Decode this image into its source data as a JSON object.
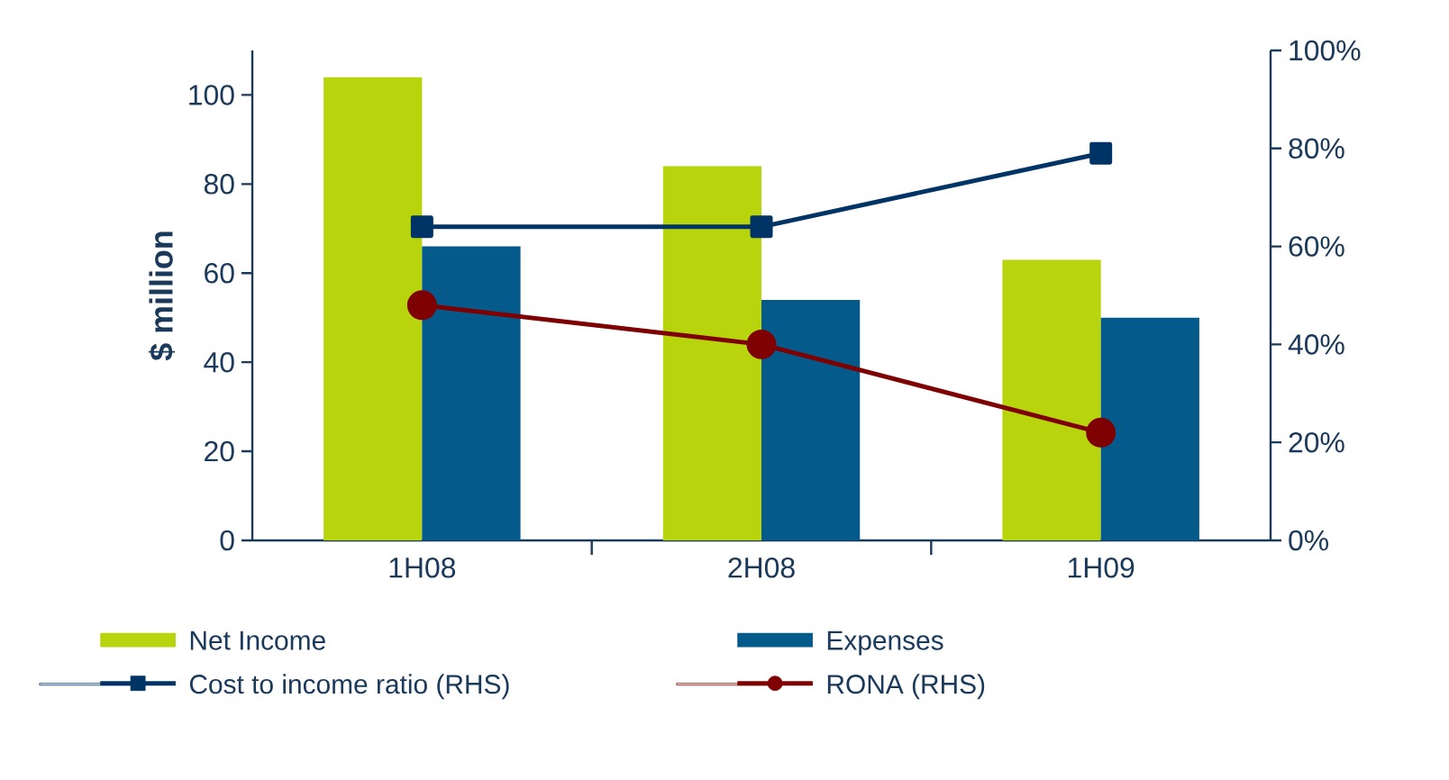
{
  "chart_data": {
    "type": "bar",
    "categories": [
      "1H08",
      "2H08",
      "1H09"
    ],
    "ylabel": "$ million",
    "ylim": [
      0,
      110
    ],
    "yticks": [
      0,
      20,
      40,
      60,
      80,
      100
    ],
    "y2lim": [
      0,
      100
    ],
    "y2ticks": [
      {
        "value": 0,
        "label": "0%"
      },
      {
        "value": 20,
        "label": "20%"
      },
      {
        "value": 40,
        "label": "40%"
      },
      {
        "value": 60,
        "label": "60%"
      },
      {
        "value": 80,
        "label": "80%"
      },
      {
        "value": 100,
        "label": "100%"
      }
    ],
    "legend": "bottom",
    "series": [
      {
        "name": "Net Income",
        "color": "#b8d40c",
        "values": [
          104,
          84,
          63
        ]
      },
      {
        "name": "Expenses",
        "color": "#055a8c",
        "values": [
          66,
          54,
          50
        ]
      },
      {
        "name": "Cost to income ratio (RHS)",
        "type": "line",
        "axis": "y2",
        "marker": "square",
        "color": "#003366",
        "values": [
          64,
          64,
          79
        ]
      },
      {
        "name": "RONA (RHS)",
        "type": "line",
        "axis": "y2",
        "marker": "circle",
        "color": "#7f0000",
        "values": [
          48,
          40,
          22
        ]
      }
    ]
  }
}
